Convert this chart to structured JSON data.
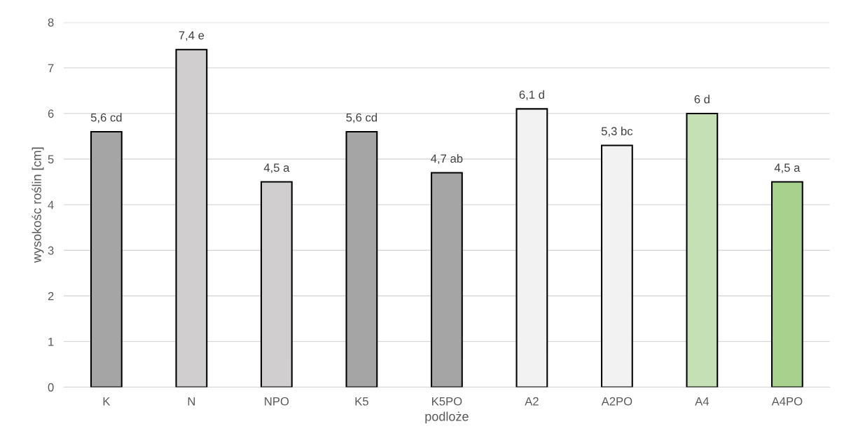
{
  "chart_data": {
    "type": "bar",
    "xlabel": "podloże",
    "ylabel": "wysokośc roślin [cm]",
    "categories": [
      "K",
      "N",
      "NPO",
      "K5",
      "K5PO",
      "A2",
      "A2PO",
      "A4",
      "A4PO"
    ],
    "values": [
      5.6,
      7.4,
      4.5,
      5.6,
      4.7,
      6.1,
      5.3,
      6.0,
      4.5
    ],
    "colors": [
      "#a5a5a5",
      "#d0cece",
      "#d0cece",
      "#a5a5a5",
      "#a5a5a5",
      "#f2f2f2",
      "#f2f2f2",
      "#c5e0b4",
      "#a9d18e"
    ],
    "value_labels": [
      "5,6 cd",
      "7,4 e",
      "4,5 a",
      "5,6 cd",
      "4,7 ab",
      "6,1 d",
      "5,3 bc",
      "6 d",
      "4,5 a"
    ],
    "ylim": [
      0,
      8
    ],
    "yticks": [
      0,
      1,
      2,
      3,
      4,
      5,
      6,
      7,
      8
    ],
    "grid": "y"
  }
}
